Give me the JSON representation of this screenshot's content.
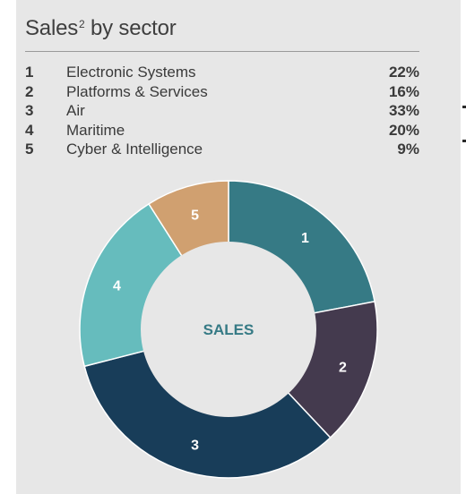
{
  "title": "Sales",
  "title_sup": "2",
  "chart_data": {
    "type": "pie",
    "title": "Sales² by sector",
    "center_label": "SALES",
    "slices": [
      {
        "id": "1",
        "label": "Electronic Systems",
        "value": 22,
        "value_label": "22%",
        "color": "#367a85"
      },
      {
        "id": "2",
        "label": "Platforms & Services",
        "value": 16,
        "value_label": "16%",
        "color": "#443a4e"
      },
      {
        "id": "3",
        "label": "Air",
        "value": 33,
        "value_label": "33%",
        "color": "#183d59"
      },
      {
        "id": "4",
        "label": "Maritime",
        "value": 20,
        "value_label": "20%",
        "color": "#66bcbd"
      },
      {
        "id": "5",
        "label": "Cyber & Intelligence",
        "value": 9,
        "value_label": "9%",
        "color": "#d0a070"
      }
    ]
  }
}
